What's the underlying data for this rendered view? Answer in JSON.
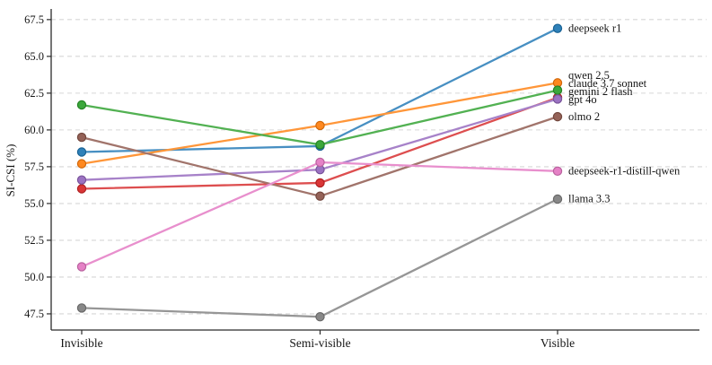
{
  "chart_data": {
    "type": "line",
    "title": "",
    "xlabel": "",
    "ylabel": "SI-CSI (%)",
    "categories": [
      "Invisible",
      "Semi-visible",
      "Visible"
    ],
    "yticks": [
      47.5,
      50.0,
      52.5,
      55.0,
      57.5,
      60.0,
      62.5,
      65.0,
      67.5
    ],
    "ylim": [
      46.4,
      68.1
    ],
    "grid": "horizontal-dashed",
    "grid_color": "#d6d6d6",
    "axis_color": "#2b2b2b",
    "legend_position": "end-of-line-labels-right",
    "series": [
      {
        "name": "deepseek r1",
        "color": "#1f77b4",
        "values": [
          58.5,
          58.9,
          66.9
        ]
      },
      {
        "name": "qwen 2.5",
        "color": "#ff7f0e",
        "values": [
          57.7,
          60.3,
          63.2
        ]
      },
      {
        "name": "claude 3.7 sonnet",
        "color": "#d62728",
        "values": [
          56.0,
          56.4,
          62.2
        ]
      },
      {
        "name": "gemini 2 flash",
        "color": "#2ca02c",
        "values": [
          61.7,
          59.0,
          62.7
        ]
      },
      {
        "name": "gpt 4o",
        "color": "#9467bd",
        "values": [
          56.6,
          57.3,
          62.1
        ]
      },
      {
        "name": "olmo 2",
        "color": "#8c564b",
        "values": [
          59.5,
          55.5,
          60.9
        ]
      },
      {
        "name": "deepseek-r1-distill-qwen",
        "color": "#e377c2",
        "values": [
          50.7,
          57.8,
          57.2
        ]
      },
      {
        "name": "llama 3.3",
        "color": "#7f7f7f",
        "values": [
          47.9,
          47.3,
          55.3
        ]
      }
    ]
  }
}
